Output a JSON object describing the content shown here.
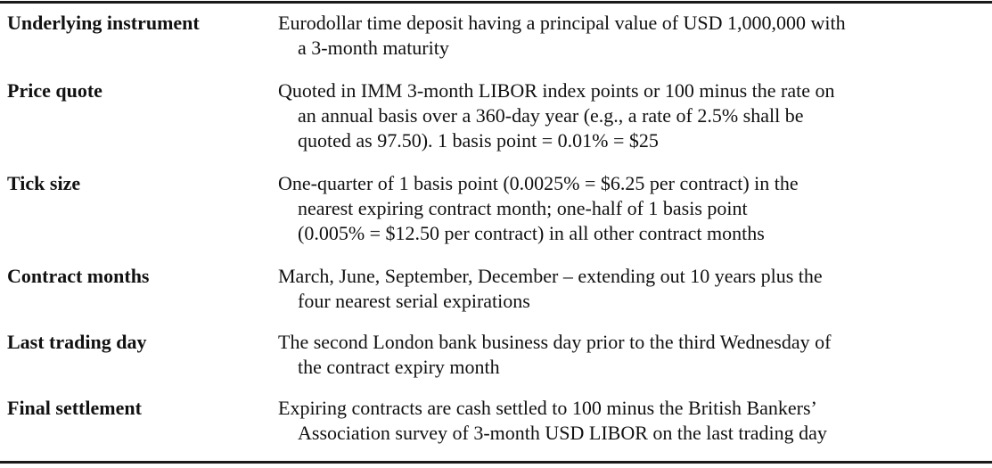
{
  "rows": [
    {
      "term": "Underlying instrument",
      "lines": [
        "Eurodollar time deposit having a principal value of USD 1,000,000 with",
        "a 3-month maturity"
      ]
    },
    {
      "term": "Price quote",
      "lines": [
        "Quoted in IMM 3-month LIBOR index points or 100 minus the rate on",
        "an annual basis over a 360-day year (e.g., a rate of 2.5% shall be",
        "quoted as 97.50). 1 basis point = 0.01% = $25"
      ]
    },
    {
      "term": "Tick size",
      "lines": [
        "One-quarter of 1 basis point (0.0025% = $6.25 per contract) in the",
        "nearest expiring contract month; one-half of 1 basis point",
        "(0.005% = $12.50 per contract) in all other contract months"
      ]
    },
    {
      "term": "Contract months",
      "lines": [
        "March, June, September, December – extending out 10 years plus the",
        "four nearest serial expirations"
      ]
    },
    {
      "term": "Last trading day",
      "lines": [
        "The second London bank business day prior to the third Wednesday of",
        "the contract expiry month"
      ]
    },
    {
      "term": "Final settlement",
      "lines": [
        "Expiring contracts are cash settled to 100 minus the British Bankers’",
        "Association survey of 3-month USD LIBOR on the last trading day"
      ]
    }
  ]
}
